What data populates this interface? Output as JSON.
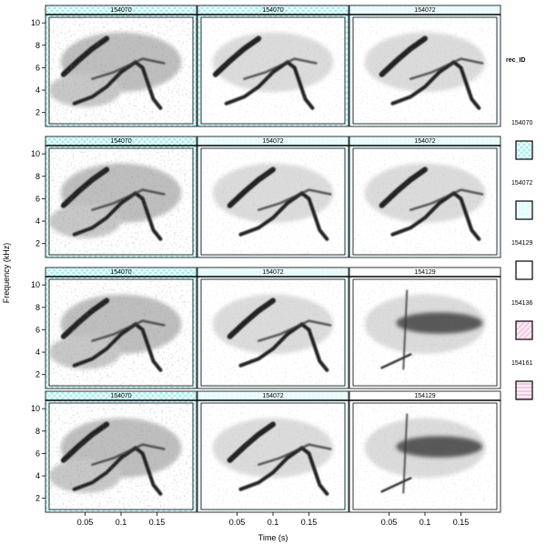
{
  "chart_data": {
    "type": "heatmap",
    "subtype": "spectrogram-grid",
    "xlabel": "Time (s)",
    "ylabel": "Frequency (kHz)",
    "xlim": [
      0,
      0.2
    ],
    "ylim": [
      1,
      10.5
    ],
    "x_ticks": [
      0.05,
      0.1,
      0.15
    ],
    "y_ticks": [
      2,
      4,
      6,
      8,
      10
    ],
    "layout": {
      "rows": 4,
      "cols": 3
    },
    "panels": [
      {
        "row": 0,
        "col": 0,
        "rec_ID": "154070"
      },
      {
        "row": 0,
        "col": 1,
        "rec_ID": "154070"
      },
      {
        "row": 0,
        "col": 2,
        "rec_ID": "154072"
      },
      {
        "row": 1,
        "col": 0,
        "rec_ID": "154070"
      },
      {
        "row": 1,
        "col": 1,
        "rec_ID": "154072"
      },
      {
        "row": 1,
        "col": 2,
        "rec_ID": "154072"
      },
      {
        "row": 2,
        "col": 0,
        "rec_ID": "154070"
      },
      {
        "row": 2,
        "col": 1,
        "rec_ID": "154072"
      },
      {
        "row": 2,
        "col": 2,
        "rec_ID": "154129"
      },
      {
        "row": 3,
        "col": 0,
        "rec_ID": "154070"
      },
      {
        "row": 3,
        "col": 1,
        "rec_ID": "154072"
      },
      {
        "row": 3,
        "col": 2,
        "rec_ID": "154129"
      }
    ],
    "legend": {
      "title": "rec_ID",
      "placement": "right",
      "entries": [
        {
          "label": "154070",
          "color": "#a9eef2",
          "pattern": "cross"
        },
        {
          "label": "154072",
          "color": "#e6fbfd",
          "pattern": "dots"
        },
        {
          "label": "154129",
          "color": "#ffffff",
          "pattern": "none"
        },
        {
          "label": "154136",
          "color": "#fbe6f2",
          "pattern": "diagonal"
        },
        {
          "label": "154161",
          "color": "#f9d4e8",
          "pattern": "horizontal"
        }
      ]
    }
  }
}
